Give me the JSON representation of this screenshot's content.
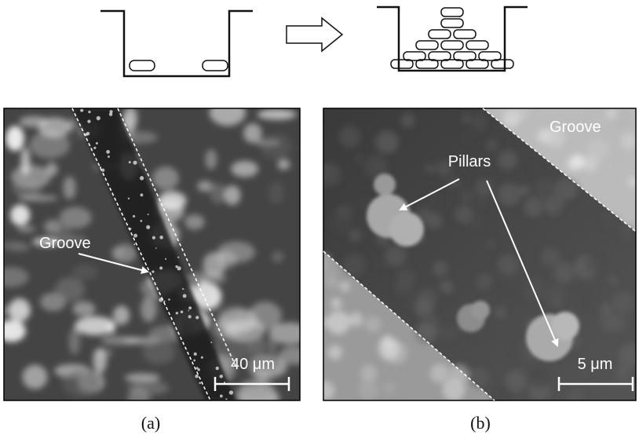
{
  "panel_a": {
    "label": "(a)",
    "annotation": "Groove",
    "scale_bar": "40 μm"
  },
  "panel_b": {
    "label": "(b)",
    "annotation": "Pillars",
    "region_label": "Groove",
    "scale_bar": "5 μm"
  }
}
